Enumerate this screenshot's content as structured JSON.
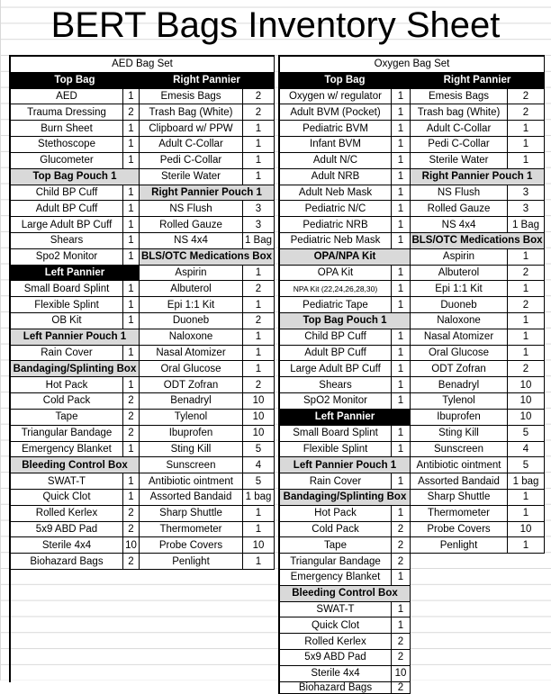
{
  "title": "BERT Bags Inventory Sheet",
  "aed": {
    "set_title": "AED Bag Set",
    "left": [
      {
        "h": "b",
        "name": "Top Bag"
      },
      {
        "name": "AED",
        "qty": "1"
      },
      {
        "name": "Trauma Dressing",
        "qty": "2"
      },
      {
        "name": "Burn Sheet",
        "qty": "1"
      },
      {
        "name": "Stethoscope",
        "qty": "1"
      },
      {
        "name": "Glucometer",
        "qty": "1"
      },
      {
        "h": "g",
        "name": "Top Bag Pouch 1"
      },
      {
        "name": "Child BP Cuff",
        "qty": "1"
      },
      {
        "name": "Adult BP Cuff",
        "qty": "1"
      },
      {
        "name": "Large Adult BP Cuff",
        "qty": "1"
      },
      {
        "name": "Shears",
        "qty": "1"
      },
      {
        "name": "Spo2 Monitor",
        "qty": "1"
      },
      {
        "h": "b",
        "name": "Left Pannier"
      },
      {
        "name": "Small Board Splint",
        "qty": "1"
      },
      {
        "name": "Flexible Splint",
        "qty": "1"
      },
      {
        "name": "OB Kit",
        "qty": "1"
      },
      {
        "h": "g",
        "name": "Left Pannier Pouch 1"
      },
      {
        "name": "Rain Cover",
        "qty": "1"
      },
      {
        "h": "g",
        "name": "Bandaging/Splinting Box"
      },
      {
        "name": "Hot Pack",
        "qty": "1"
      },
      {
        "name": "Cold Pack",
        "qty": "2"
      },
      {
        "name": "Tape",
        "qty": "2"
      },
      {
        "name": "Triangular Bandage",
        "qty": "2"
      },
      {
        "name": "Emergency Blanket",
        "qty": "1"
      },
      {
        "h": "g",
        "name": "Bleeding Control Box"
      },
      {
        "name": "SWAT-T",
        "qty": "1"
      },
      {
        "name": "Quick Clot",
        "qty": "1"
      },
      {
        "name": "Rolled Kerlex",
        "qty": "2"
      },
      {
        "name": "5x9 ABD Pad",
        "qty": "2"
      },
      {
        "name": "Sterile 4x4",
        "qty": "10"
      },
      {
        "name": "Biohazard Bags",
        "qty": "2"
      }
    ],
    "right": [
      {
        "h": "b",
        "name": "Right Pannier"
      },
      {
        "name": "Emesis Bags",
        "qty": "2"
      },
      {
        "name": "Trash Bag (White)",
        "qty": "2"
      },
      {
        "name": "Clipboard w/ PPW",
        "qty": "1"
      },
      {
        "name": "Adult C-Collar",
        "qty": "1"
      },
      {
        "name": "Pedi C-Collar",
        "qty": "1"
      },
      {
        "name": "Sterile Water",
        "qty": "1"
      },
      {
        "h": "g",
        "name": "Right Pannier Pouch 1"
      },
      {
        "name": "NS Flush",
        "qty": "3"
      },
      {
        "name": "Rolled Gauze",
        "qty": "3"
      },
      {
        "name": "NS 4x4",
        "qty": "1 Bag"
      },
      {
        "h": "g",
        "name": "BLS/OTC Medications Box"
      },
      {
        "name": "Aspirin",
        "qty": "1"
      },
      {
        "name": "Albuterol",
        "qty": "2"
      },
      {
        "name": "Epi 1:1 Kit",
        "qty": "1"
      },
      {
        "name": "Duoneb",
        "qty": "2"
      },
      {
        "name": "Naloxone",
        "qty": "1"
      },
      {
        "name": "Nasal Atomizer",
        "qty": "1"
      },
      {
        "name": "Oral Glucose",
        "qty": "1"
      },
      {
        "name": "ODT Zofran",
        "qty": "2"
      },
      {
        "name": "Benadryl",
        "qty": "10"
      },
      {
        "name": "Tylenol",
        "qty": "10"
      },
      {
        "name": "Ibuprofen",
        "qty": "10"
      },
      {
        "name": "Sting Kill",
        "qty": "5"
      },
      {
        "name": "Sunscreen",
        "qty": "4"
      },
      {
        "name": "Antibiotic ointment",
        "qty": "5"
      },
      {
        "name": "Assorted Bandaid",
        "qty": "1 bag"
      },
      {
        "name": "Sharp Shuttle",
        "qty": "1"
      },
      {
        "name": "Thermometer",
        "qty": "1"
      },
      {
        "name": "Probe Covers",
        "qty": "10"
      },
      {
        "name": "Penlight",
        "qty": "1"
      }
    ]
  },
  "oxy": {
    "set_title": "Oxygen Bag Set",
    "left": [
      {
        "h": "b",
        "name": "Top Bag"
      },
      {
        "name": "Oxygen w/ regulator",
        "qty": "1"
      },
      {
        "name": "Adult BVM (Pocket)",
        "qty": "1"
      },
      {
        "name": "Pediatric BVM",
        "qty": "1"
      },
      {
        "name": "Infant BVM",
        "qty": "1"
      },
      {
        "name": "Adult N/C",
        "qty": "1"
      },
      {
        "name": "Adult NRB",
        "qty": "1"
      },
      {
        "name": "Adult Neb Mask",
        "qty": "1"
      },
      {
        "name": "Pediatric N/C",
        "qty": "1"
      },
      {
        "name": "Pediatric NRB",
        "qty": "1"
      },
      {
        "name": "Pediatric Neb Mask",
        "qty": "1"
      },
      {
        "h": "g",
        "name": "OPA/NPA Kit"
      },
      {
        "name": "OPA Kit",
        "qty": "1"
      },
      {
        "name": "NPA Kit (22,24,26,28,30)",
        "qty": "1",
        "small": true
      },
      {
        "name": "Pediatric Tape",
        "qty": "1"
      },
      {
        "h": "g",
        "name": "Top Bag Pouch 1"
      },
      {
        "name": "Child BP Cuff",
        "qty": "1"
      },
      {
        "name": "Adult BP Cuff",
        "qty": "1"
      },
      {
        "name": "Large Adult BP Cuff",
        "qty": "1"
      },
      {
        "name": "Shears",
        "qty": "1"
      },
      {
        "name": "SpO2 Monitor",
        "qty": "1"
      },
      {
        "h": "b",
        "name": "Left Pannier"
      },
      {
        "name": "Small Board Splint",
        "qty": "1"
      },
      {
        "name": "Flexible Splint",
        "qty": "1"
      },
      {
        "h": "g",
        "name": "Left Pannier Pouch 1"
      },
      {
        "name": "Rain Cover",
        "qty": "1"
      },
      {
        "h": "g",
        "name": "Bandaging/Splinting Box"
      },
      {
        "name": "Hot Pack",
        "qty": "1"
      },
      {
        "name": "Cold Pack",
        "qty": "2"
      },
      {
        "name": "Tape",
        "qty": "2"
      },
      {
        "name": "Triangular Bandage",
        "qty": "2"
      },
      {
        "name": "Emergency Blanket",
        "qty": "1"
      },
      {
        "h": "g",
        "name": "Bleeding Control Box"
      },
      {
        "name": "SWAT-T",
        "qty": "1"
      },
      {
        "name": "Quick Clot",
        "qty": "1"
      },
      {
        "name": "Rolled Kerlex",
        "qty": "2"
      },
      {
        "name": "5x9 ABD Pad",
        "qty": "2"
      },
      {
        "name": "Sterile 4x4",
        "qty": "10"
      },
      {
        "name": "Biohazard Bags",
        "qty": "2"
      }
    ],
    "right": [
      {
        "h": "b",
        "name": "Right Pannier"
      },
      {
        "name": "Emesis Bags",
        "qty": "2"
      },
      {
        "name": "Trash bag (White)",
        "qty": "2"
      },
      {
        "name": "Adult C-Collar",
        "qty": "1"
      },
      {
        "name": "Pedi C-Collar",
        "qty": "1"
      },
      {
        "name": "Sterile Water",
        "qty": "1"
      },
      {
        "h": "g",
        "name": "Right Pannier Pouch 1"
      },
      {
        "name": "NS Flush",
        "qty": "3"
      },
      {
        "name": "Rolled Gauze",
        "qty": "3"
      },
      {
        "name": "NS 4x4",
        "qty": "1 Bag"
      },
      {
        "h": "g",
        "name": "BLS/OTC Medications Box"
      },
      {
        "name": "Aspirin",
        "qty": "1"
      },
      {
        "name": "Albuterol",
        "qty": "2"
      },
      {
        "name": "Epi 1:1 Kit",
        "qty": "1"
      },
      {
        "name": "Duoneb",
        "qty": "2"
      },
      {
        "name": "Naloxone",
        "qty": "1"
      },
      {
        "name": "Nasal Atomizer",
        "qty": "1"
      },
      {
        "name": "Oral Glucose",
        "qty": "1"
      },
      {
        "name": "ODT Zofran",
        "qty": "2"
      },
      {
        "name": "Benadryl",
        "qty": "10"
      },
      {
        "name": "Tylenol",
        "qty": "10"
      },
      {
        "name": "Ibuprofen",
        "qty": "10"
      },
      {
        "name": "Sting Kill",
        "qty": "5"
      },
      {
        "name": "Sunscreen",
        "qty": "4"
      },
      {
        "name": "Antibiotic ointment",
        "qty": "5"
      },
      {
        "name": "Assorted Bandaid",
        "qty": "1 bag"
      },
      {
        "name": "Sharp Shuttle",
        "qty": "1"
      },
      {
        "name": "Thermometer",
        "qty": "1"
      },
      {
        "name": "Probe Covers",
        "qty": "10"
      },
      {
        "name": "Penlight",
        "qty": "1"
      }
    ]
  }
}
